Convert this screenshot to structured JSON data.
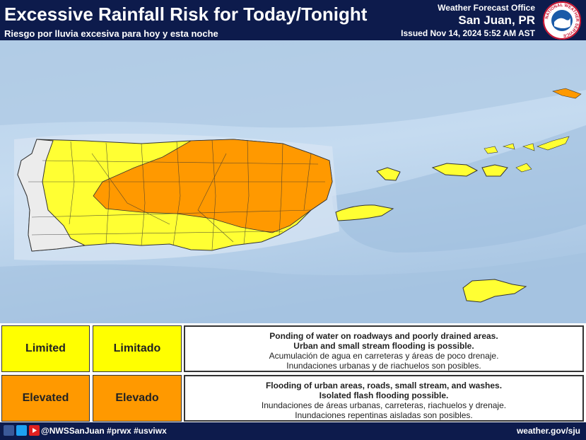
{
  "header": {
    "title": "Excessive Rainfall Risk for Today/Tonight",
    "subtitle": "Riesgo por lluvia excesiva para hoy y esta noche",
    "office": "Weather Forecast Office",
    "location": "San Juan, PR",
    "issued": "Issued Nov 14, 2024 5:52 AM AST",
    "logo_text": "NATIONAL WEATHER SERVICE"
  },
  "legend": [
    {
      "level": "Limited",
      "level_es": "Limitado",
      "color": "#ffff00",
      "desc_bold": [
        "Ponding of water on roadways and poorly drained areas.",
        "Urban and small stream flooding is possible."
      ],
      "desc": [
        "Acumulación de agua en carreteras y áreas de poco drenaje.",
        "Inundaciones urbanas y de riachuelos son posibles."
      ]
    },
    {
      "level": "Elevated",
      "level_es": "Elevado",
      "color": "#ff9900",
      "desc_bold": [
        "Flooding of urban areas, roads, small stream, and washes.",
        "Isolated flash flooding possible."
      ],
      "desc": [
        "Inundaciones de áreas urbanas, carreteras, riachuelos y drenaje.",
        "Inundaciones repentinas aisladas son posibles."
      ]
    }
  ],
  "footer": {
    "social": "@NWSSanJuan #prwx #usviwx",
    "url": "weather.gov/sju"
  }
}
